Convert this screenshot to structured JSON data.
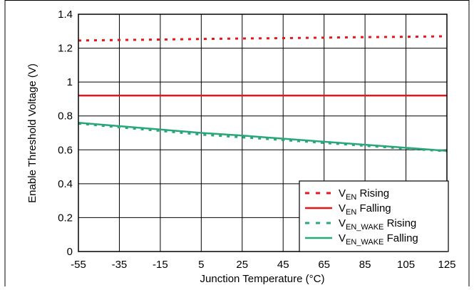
{
  "chart_data": {
    "type": "line",
    "title": "",
    "xlabel": "Junction Temperature (°C)",
    "ylabel": "Enable Threshold Voltage (V)",
    "xlim": [
      -55,
      125
    ],
    "ylim": [
      0,
      1.4
    ],
    "x_ticks": [
      "-55",
      "-35",
      "-15",
      "5",
      "25",
      "45",
      "65",
      "85",
      "105",
      "125"
    ],
    "y_ticks": [
      "0",
      "0.2",
      "0.4",
      "0.6",
      "0.8",
      "1",
      "1.2",
      "1.4"
    ],
    "grid": true,
    "legend_position": "bottom-right",
    "series": [
      {
        "legend_main": "V",
        "legend_sub": "EN",
        "legend_rest": " Rising",
        "color": "#e8161b",
        "dash": "dotted",
        "x": [
          -55,
          -35,
          -15,
          5,
          25,
          45,
          65,
          85,
          105,
          125
        ],
        "y": [
          1.245,
          1.248,
          1.251,
          1.254,
          1.257,
          1.259,
          1.262,
          1.265,
          1.267,
          1.27
        ]
      },
      {
        "legend_main": "V",
        "legend_sub": "EN",
        "legend_rest": " Falling",
        "color": "#e8161b",
        "dash": "solid",
        "x": [
          -55,
          -35,
          -15,
          5,
          25,
          45,
          65,
          85,
          105,
          125
        ],
        "y": [
          0.92,
          0.92,
          0.92,
          0.92,
          0.92,
          0.92,
          0.92,
          0.92,
          0.92,
          0.92
        ]
      },
      {
        "legend_main": "V",
        "legend_sub": "EN_WAKE",
        "legend_rest": " Rising",
        "color": "#2aa779",
        "dash": "dotted",
        "x": [
          -55,
          -35,
          -15,
          5,
          25,
          45,
          65,
          85,
          105,
          125
        ],
        "y": [
          0.755,
          0.733,
          0.712,
          0.69,
          0.674,
          0.658,
          0.641,
          0.624,
          0.607,
          0.592
        ]
      },
      {
        "legend_main": "V",
        "legend_sub": "EN_WAKE",
        "legend_rest": " Falling",
        "color": "#2aa779",
        "dash": "solid",
        "x": [
          -55,
          -35,
          -15,
          5,
          25,
          45,
          65,
          85,
          105,
          125
        ],
        "y": [
          0.76,
          0.74,
          0.72,
          0.7,
          0.684,
          0.666,
          0.648,
          0.63,
          0.612,
          0.594
        ]
      }
    ]
  }
}
